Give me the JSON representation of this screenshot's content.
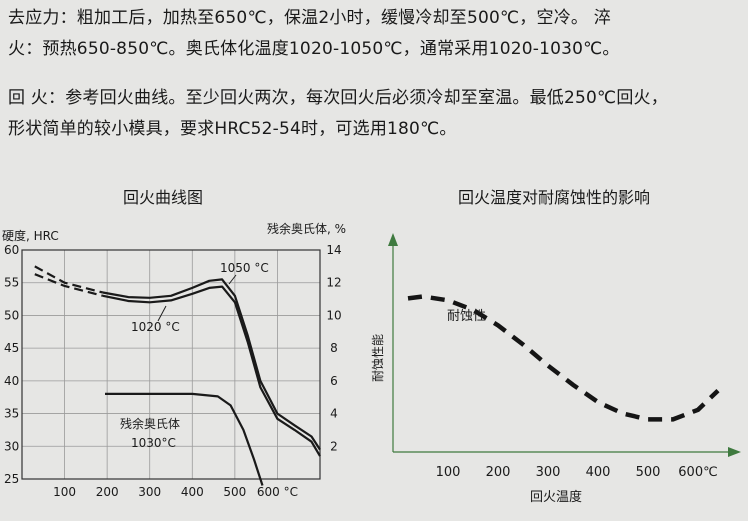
{
  "paragraphs": [
    {
      "lines": [
        "去应力：粗加工后，加热至650℃，保温2小时，缓慢冷却至500℃，空冷。 淬",
        "火：预热650-850℃。奥氏体化温度1020-1050℃，通常采用1020-1030℃。"
      ]
    },
    {
      "lines": [
        "回 火：参考回火曲线。至少回火两次，每次回火后必须冷却至室温。最低250℃回火，",
        "形状简单的较小模具，要求HRC52-54时，可选用180℃。"
      ]
    }
  ],
  "chart_data": [
    {
      "type": "line",
      "title": "回火曲线图",
      "ylabel": "硬度, HRC",
      "y2label": "残余奥氏体, %",
      "x_ticks": [
        "100",
        "200",
        "300",
        "400",
        "500",
        "600 °C"
      ],
      "y_ticks": [
        "25",
        "30",
        "35",
        "40",
        "45",
        "50",
        "55",
        "60"
      ],
      "y2_ticks": [
        "2",
        "4",
        "6",
        "8",
        "10",
        "12",
        "14"
      ],
      "xlim": [
        0,
        700
      ],
      "ylim": [
        25,
        60
      ],
      "y2lim": [
        0,
        14
      ],
      "grid": true,
      "annotations": [
        "1050 °C",
        "1020 °C",
        "残余奥氏体",
        "1030°C"
      ],
      "series": [
        {
          "name": "1050 °C",
          "axis": "left",
          "dashed_to": 190,
          "x": [
            30,
            100,
            190,
            250,
            300,
            350,
            400,
            440,
            470,
            500,
            530,
            560,
            600,
            640,
            680,
            700
          ],
          "y": [
            57.5,
            55,
            53.5,
            52.8,
            52.7,
            53,
            54.2,
            55.3,
            55.5,
            53,
            47,
            40,
            35,
            33.2,
            31.5,
            29.5
          ]
        },
        {
          "name": "1020 °C",
          "axis": "left",
          "dashed_to": 190,
          "x": [
            30,
            100,
            190,
            250,
            300,
            350,
            400,
            440,
            470,
            500,
            530,
            560,
            600,
            640,
            680,
            700
          ],
          "y": [
            56.3,
            54.5,
            53,
            52.2,
            52,
            52.3,
            53.3,
            54.2,
            54.4,
            52,
            46,
            39,
            34.2,
            32.5,
            30.7,
            28.5
          ]
        },
        {
          "name": "残余奥氏体 1030°C",
          "axis": "right",
          "x": [
            195,
            300,
            400,
            460,
            490,
            520,
            545,
            565
          ],
          "y": [
            5.2,
            5.2,
            5.2,
            5.05,
            4.5,
            3,
            1.2,
            -0.4
          ]
        }
      ]
    },
    {
      "type": "line",
      "title": "回火温度对耐腐蚀性的影响",
      "xlabel": "回火温度",
      "ylabel": "耐蚀性能",
      "x_ticks": [
        "100",
        "200",
        "300",
        "400",
        "500",
        "600℃"
      ],
      "annotations": [
        "耐蚀性"
      ],
      "series": [
        {
          "name": "耐蚀性",
          "style": "dashed",
          "x": [
            20,
            50,
            100,
            150,
            200,
            250,
            300,
            350,
            400,
            450,
            500,
            550,
            600,
            640
          ],
          "y": [
            0.8,
            0.81,
            0.79,
            0.74,
            0.66,
            0.56,
            0.45,
            0.35,
            0.26,
            0.2,
            0.17,
            0.17,
            0.22,
            0.32
          ]
        }
      ]
    }
  ]
}
